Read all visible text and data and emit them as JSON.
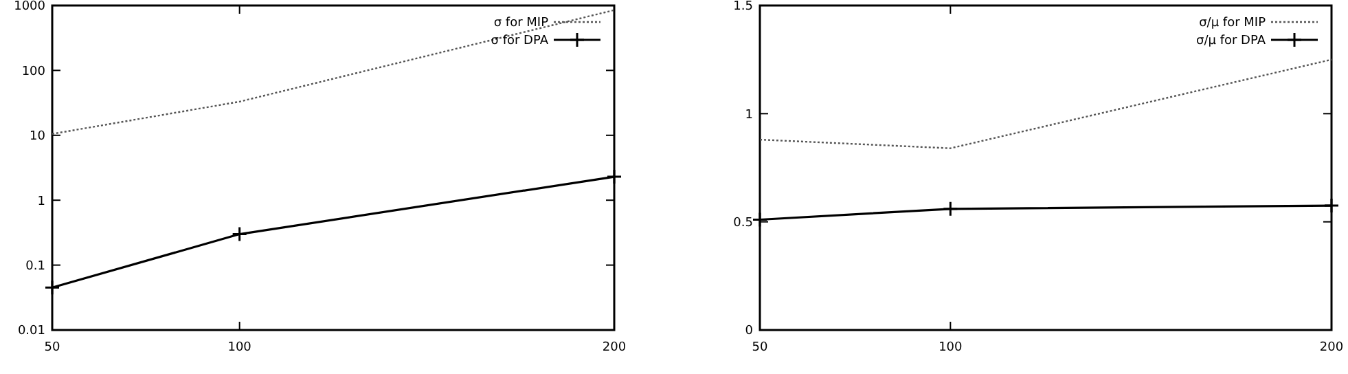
{
  "chart_data": [
    {
      "type": "line",
      "x": [
        50,
        100,
        200
      ],
      "xlim": [
        50,
        200
      ],
      "xticks": [
        50,
        100,
        200
      ],
      "ylim": [
        0.01,
        1000
      ],
      "yticks": [
        0.01,
        0.1,
        1,
        10,
        100,
        1000
      ],
      "log": "y",
      "legend": "top right",
      "grid": false,
      "series": [
        {
          "name": "σ for MIP",
          "color": "#555555",
          "values": [
            10.5,
            33,
            850
          ],
          "line_style": "dotted",
          "marker": "none"
        },
        {
          "name": "σ for DPA",
          "color": "#000000",
          "values": [
            0.045,
            0.3,
            2.3
          ],
          "line_style": "solid",
          "marker": "cross"
        }
      ]
    },
    {
      "type": "line",
      "x": [
        50,
        100,
        200
      ],
      "xlim": [
        50,
        200
      ],
      "xticks": [
        50,
        100,
        200
      ],
      "ylim": [
        0,
        1.5
      ],
      "yticks": [
        0,
        0.5,
        1,
        1.5
      ],
      "legend": "top right",
      "grid": false,
      "series": [
        {
          "name": "σ/μ for MIP",
          "color": "#555555",
          "values": [
            0.88,
            0.84,
            1.25
          ],
          "line_style": "dotted",
          "marker": "none"
        },
        {
          "name": "σ/μ for DPA",
          "color": "#000000",
          "values": [
            0.51,
            0.56,
            0.575
          ],
          "line_style": "solid",
          "marker": "cross"
        }
      ]
    }
  ]
}
